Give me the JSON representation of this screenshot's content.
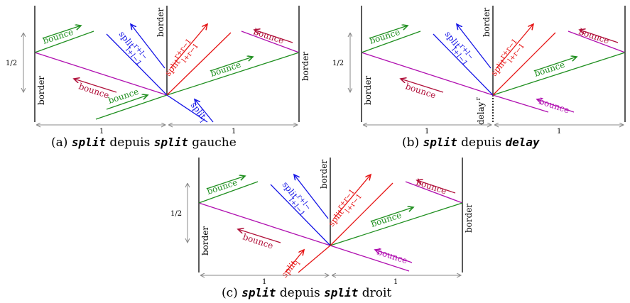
{
  "colors": {
    "green": "#1f8f1f",
    "blue": "#1515e6",
    "red": "#e61515",
    "purple": "#b010b0",
    "crimson": "#b0103a",
    "gray": "#888888",
    "black": "#000000"
  },
  "labels": {
    "border": "border",
    "bounce": "bounce",
    "split": "split",
    "split_sup_blue": "r+l−",
    "split_sub_blue": "l+l−1",
    "split_sup_red": "r+r−1",
    "split_sub_red": "l+r−1",
    "split_sub_l": "l",
    "delay": "delay",
    "delay_sup": "r",
    "half": "1/2",
    "one": "1"
  },
  "captions": {
    "a": {
      "pre": "(a) ",
      "code1": "split",
      "mid": " depuis ",
      "code2": "split",
      "post": " gauche"
    },
    "b": {
      "pre": "(b) ",
      "code1": "split",
      "mid": " depuis ",
      "code2": "delay",
      "post": ""
    },
    "c": {
      "pre": "(c) ",
      "code1": "split",
      "mid": " depuis ",
      "code2": "split",
      "post": " droit"
    }
  }
}
